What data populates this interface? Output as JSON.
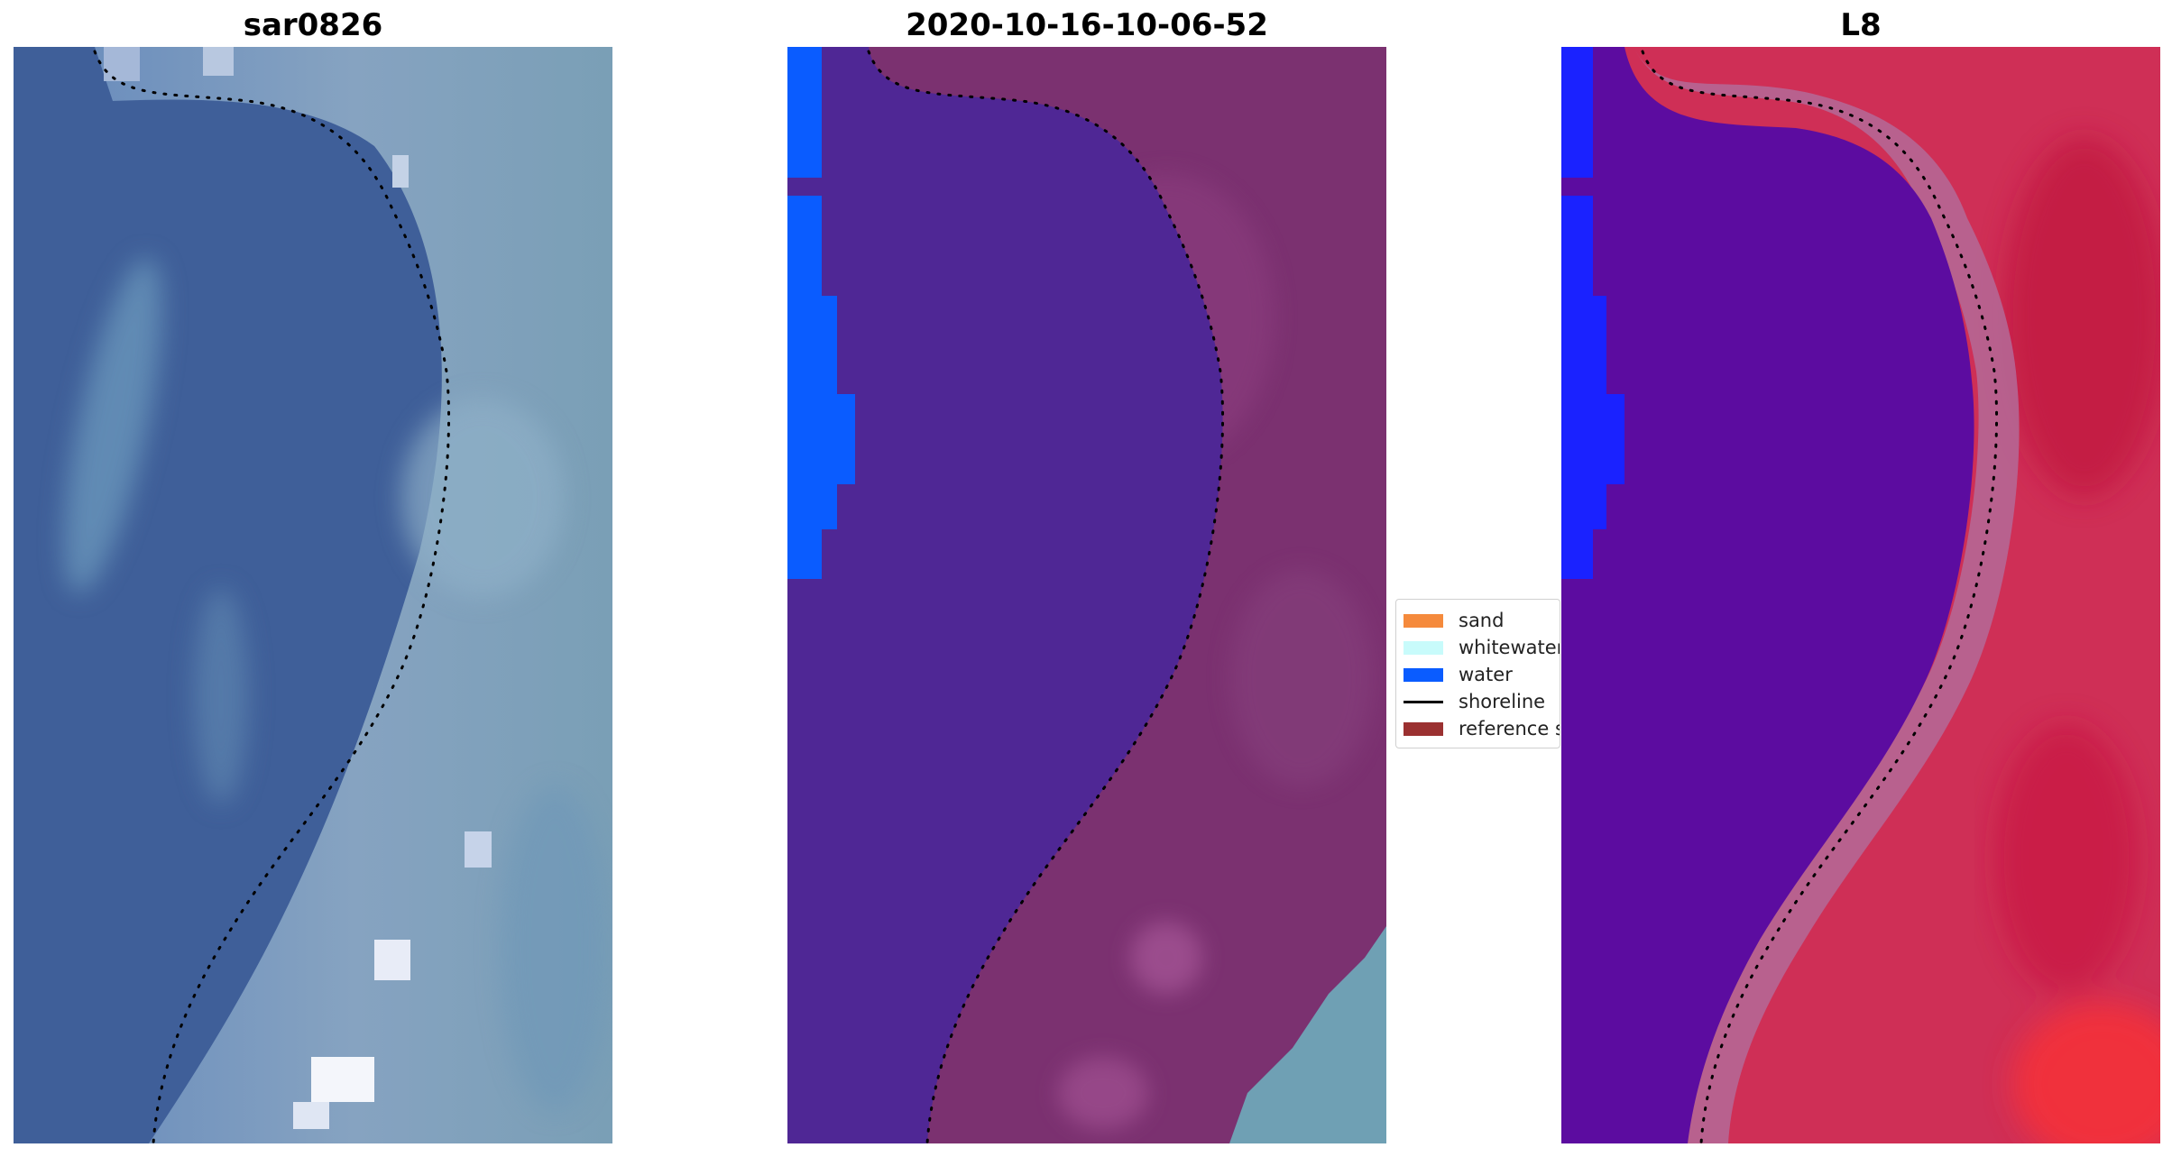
{
  "panels": [
    {
      "title": "sar0826"
    },
    {
      "title": "2020-10-16-10-06-52"
    },
    {
      "title": "L8"
    }
  ],
  "legend": {
    "items": [
      {
        "label": "sand",
        "color": "#f58a3c",
        "kind": "patch"
      },
      {
        "label": "whitewater",
        "color": "#c8fbfb",
        "kind": "patch"
      },
      {
        "label": "water",
        "color": "#0a5cff",
        "kind": "patch"
      },
      {
        "label": "shoreline",
        "color": "#000000",
        "kind": "line"
      },
      {
        "label": "reference s",
        "color": "#9b3131",
        "kind": "patch"
      }
    ]
  },
  "colors": {
    "sar_water": "#3d5f98",
    "sar_land": "#7f98b8",
    "classified_water": "#4f2795",
    "classified_land": "#7a3070",
    "classified_blue_strip": "#0a5cff",
    "l8_water": "#5a0ea0",
    "l8_land": "#d83a5a",
    "l8_blue_strip": "#1a22ff"
  }
}
